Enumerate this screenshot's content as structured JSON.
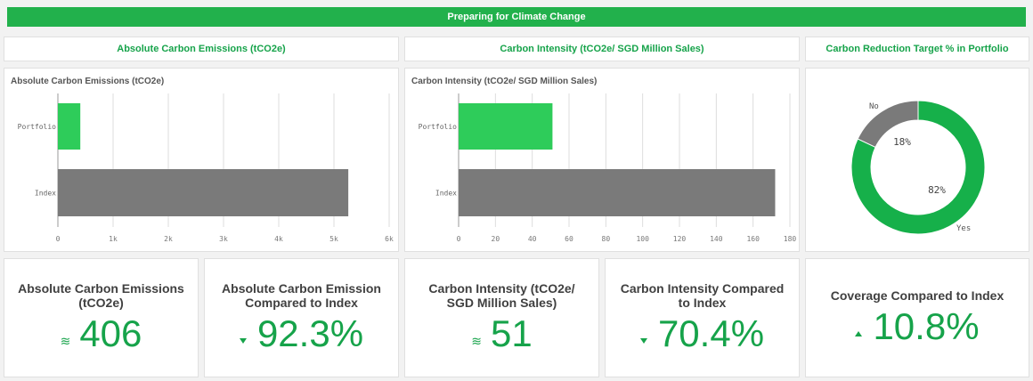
{
  "banner": {
    "title": "Preparing for Climate Change"
  },
  "section_titles": [
    "Absolute Carbon Emissions (tCO2e)",
    "Carbon Intensity (tCO2e/ SGD Million Sales)",
    "Carbon Reduction Target % in Portfolio"
  ],
  "colors": {
    "accent": "#22b14c",
    "portfolio_bar": "#2ecc5a",
    "index_bar": "#7a7a7a",
    "donut_yes": "#16b04a",
    "donut_no": "#7a7a7a"
  },
  "chart_data": [
    {
      "type": "bar",
      "orientation": "horizontal",
      "title": "Absolute Carbon Emissions (tCO2e)",
      "categories": [
        "Portfolio",
        "Index"
      ],
      "values": [
        406,
        5260
      ],
      "xlim": [
        0,
        6000
      ],
      "ticks": [
        0,
        1000,
        2000,
        3000,
        4000,
        5000,
        6000
      ],
      "tick_labels": [
        "0",
        "1k",
        "2k",
        "3k",
        "4k",
        "5k",
        "6k"
      ],
      "grid": true
    },
    {
      "type": "bar",
      "orientation": "horizontal",
      "title": "Carbon Intensity (tCO2e/ SGD Million Sales)",
      "categories": [
        "Portfolio",
        "Index"
      ],
      "values": [
        51,
        172
      ],
      "xlim": [
        0,
        180
      ],
      "ticks": [
        0,
        20,
        40,
        60,
        80,
        100,
        120,
        140,
        160,
        180
      ],
      "tick_labels": [
        "0",
        "20",
        "40",
        "60",
        "80",
        "100",
        "120",
        "140",
        "160",
        "180"
      ],
      "grid": true
    },
    {
      "type": "pie",
      "style": "donut",
      "categories": [
        "No",
        "Yes"
      ],
      "values": [
        18,
        82
      ],
      "value_labels": [
        "18%",
        "82%"
      ]
    }
  ],
  "kpis": [
    {
      "label": "Absolute Carbon Emissions (tCO2e)",
      "value": "406",
      "glyph": "≋",
      "indicator": "approx"
    },
    {
      "label": "Absolute Carbon Emission Compared to Index",
      "value": "92.3%",
      "indicator": "down"
    },
    {
      "label": "Carbon Intensity (tCO2e/ SGD Million Sales)",
      "value": "51",
      "glyph": "≋",
      "indicator": "approx"
    },
    {
      "label": "Carbon Intensity Compared to Index",
      "value": "70.4%",
      "indicator": "down"
    },
    {
      "label": "Coverage Compared to Index",
      "value": "10.8%",
      "indicator": "up"
    }
  ]
}
